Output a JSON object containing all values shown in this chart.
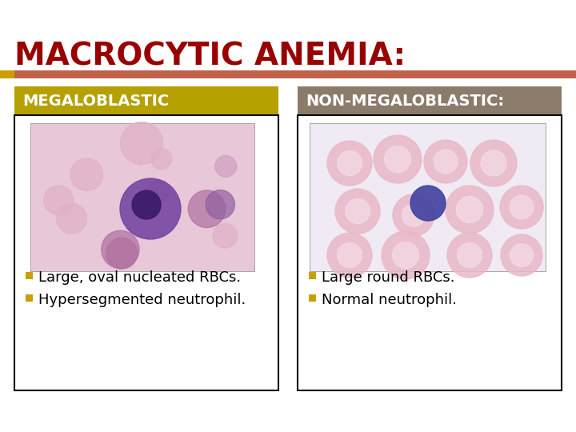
{
  "title": "MACROCYTIC ANEMIA:",
  "title_color": "#990000",
  "title_fontsize": 28,
  "title_bold": true,
  "accent_bar_color": "#C0614A",
  "accent_bar_left_color": "#C8A000",
  "left_header": "MEGALOBLASTIC",
  "left_header_bg": "#B5A000",
  "left_header_color": "#FFFFFF",
  "right_header": "NON-MEGALOBLASTIC:",
  "right_header_bg": "#8B7B6B",
  "right_header_color": "#FFFFFF",
  "left_bullets": [
    "Large, oval nucleated RBCs.",
    "Hypersegmented neutrophil."
  ],
  "right_bullets": [
    "Large round RBCs.",
    "Normal neutrophil."
  ],
  "bullet_color": "#C8A000",
  "bullet_text_color": "#000000",
  "bullet_fontsize": 13,
  "box_border_color": "#000000",
  "background_color": "#FFFFFF",
  "header_fontsize": 14,
  "header_bold": true
}
